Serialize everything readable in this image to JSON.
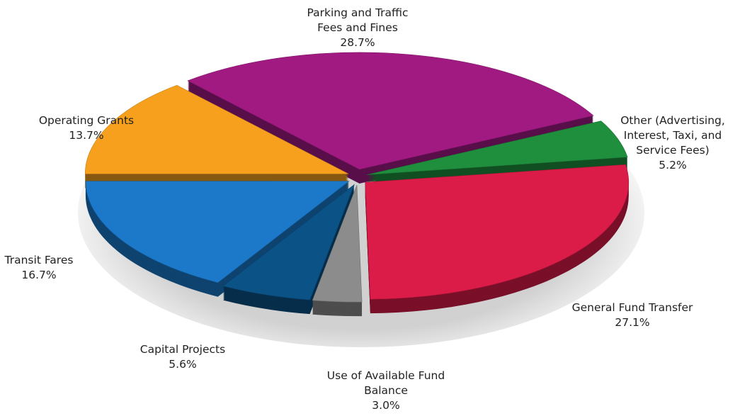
{
  "chart_data": {
    "type": "pie",
    "categories": [
      "Parking and Traffic Fees and Fines",
      "Other (Advertising, Interest, Taxi, and Service Fees)",
      "General Fund Transfer",
      "Use of Available Fund Balance",
      "Capital Projects",
      "Transit Fares",
      "Operating Grants"
    ],
    "values": [
      28.7,
      5.2,
      27.1,
      3.0,
      5.6,
      16.7,
      13.7
    ],
    "value_labels": [
      "28.7%",
      "5.2%",
      "27.1%",
      "3.0%",
      "5.6%",
      "16.7%",
      "13.7%"
    ],
    "colors": [
      "#a01a82",
      "#1f8f3e",
      "#dc1c48",
      "#8c8c8c",
      "#0b5286",
      "#1c79c9",
      "#f6a01e"
    ]
  }
}
